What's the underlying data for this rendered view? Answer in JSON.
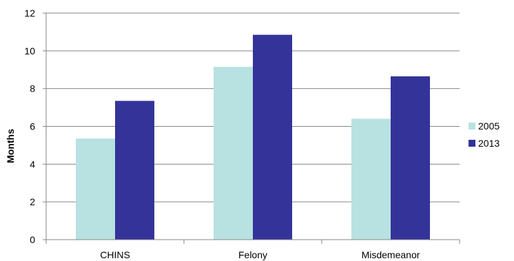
{
  "chart_data": {
    "type": "bar",
    "title": "",
    "xlabel": "",
    "ylabel": "Months",
    "categories": [
      "CHINS",
      "Felony",
      "Misdemeanor"
    ],
    "series": [
      {
        "name": "2005",
        "values": [
          5.35,
          9.15,
          6.4
        ],
        "color": "#b8e1e1"
      },
      {
        "name": "2013",
        "values": [
          7.35,
          10.85,
          8.65
        ],
        "color": "#333399"
      }
    ],
    "ylim": [
      0,
      12
    ],
    "yticks": [
      0,
      2,
      4,
      6,
      8,
      10,
      12
    ],
    "grid": true,
    "legend_position": "right"
  }
}
